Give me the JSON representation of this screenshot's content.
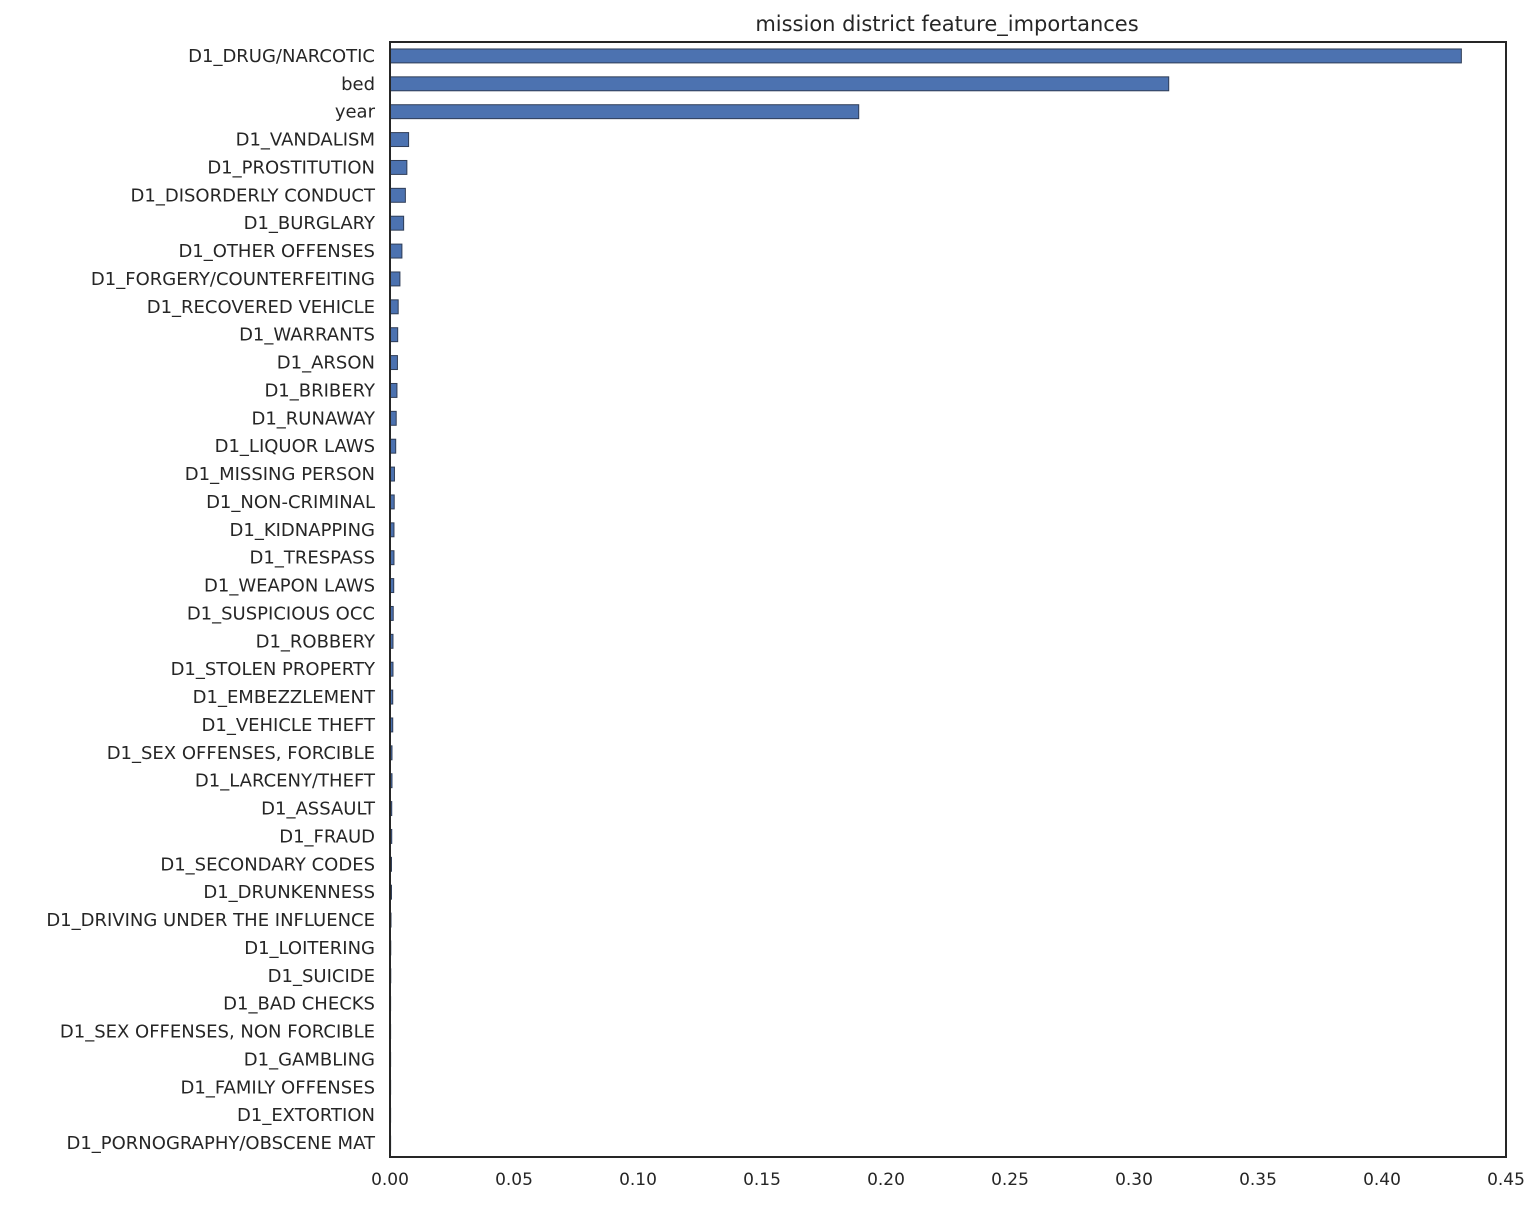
{
  "chart_data": {
    "type": "bar",
    "orientation": "horizontal",
    "title": "mission district feature_importances",
    "xlabel": "",
    "ylabel": "",
    "xlim": [
      0,
      0.45
    ],
    "xticks": [
      "0.00",
      "0.05",
      "0.10",
      "0.15",
      "0.20",
      "0.25",
      "0.30",
      "0.35",
      "0.40",
      "0.45"
    ],
    "grid": false,
    "bar_color": "#4c72b0",
    "categories": [
      "D1_DRUG/NARCOTIC",
      "bed",
      "year",
      "D1_VANDALISM",
      "D1_PROSTITUTION",
      "D1_DISORDERLY CONDUCT",
      "D1_BURGLARY",
      "D1_OTHER OFFENSES",
      "D1_FORGERY/COUNTERFEITING",
      "D1_RECOVERED VEHICLE",
      "D1_WARRANTS",
      "D1_ARSON",
      "D1_BRIBERY",
      "D1_RUNAWAY",
      "D1_LIQUOR LAWS",
      "D1_MISSING PERSON",
      "D1_NON-CRIMINAL",
      "D1_KIDNAPPING",
      "D1_TRESPASS",
      "D1_WEAPON LAWS",
      "D1_SUSPICIOUS OCC",
      "D1_ROBBERY",
      "D1_STOLEN PROPERTY",
      "D1_EMBEZZLEMENT",
      "D1_VEHICLE THEFT",
      "D1_SEX OFFENSES, FORCIBLE",
      "D1_LARCENY/THEFT",
      "D1_ASSAULT",
      "D1_FRAUD",
      "D1_SECONDARY CODES",
      "D1_DRUNKENNESS",
      "D1_DRIVING UNDER THE INFLUENCE",
      "D1_LOITERING",
      "D1_SUICIDE",
      "D1_BAD CHECKS",
      "D1_SEX OFFENSES, NON FORCIBLE",
      "D1_GAMBLING",
      "D1_FAMILY OFFENSES",
      "D1_EXTORTION",
      "D1_PORNOGRAPHY/OBSCENE MAT"
    ],
    "values": [
      0.432,
      0.314,
      0.189,
      0.0075,
      0.0068,
      0.0062,
      0.0055,
      0.0048,
      0.004,
      0.0033,
      0.0031,
      0.003,
      0.0028,
      0.0025,
      0.0023,
      0.0018,
      0.0017,
      0.0016,
      0.0016,
      0.0015,
      0.0013,
      0.0012,
      0.0012,
      0.0011,
      0.0011,
      0.0008,
      0.0008,
      0.0007,
      0.0007,
      0.0006,
      0.0006,
      0.0004,
      0.0003,
      0.0003,
      0.0002,
      0.0002,
      0.0001,
      0.0001,
      0.0001,
      5e-05
    ]
  }
}
